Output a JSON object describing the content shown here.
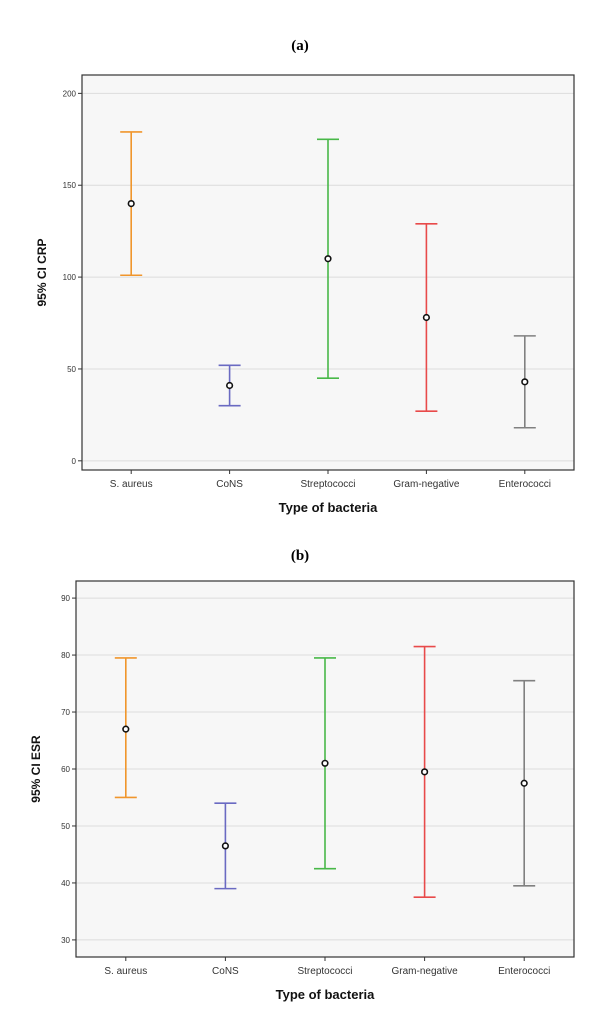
{
  "panels": [
    {
      "label": "(a)"
    },
    {
      "label": "(b)"
    }
  ],
  "chart_data": [
    {
      "type": "errorbar",
      "title": "",
      "xlabel": "Type of bacteria",
      "ylabel": "95% CI CRP",
      "categories": [
        "S. aureus",
        "CoNS",
        "Streptococci",
        "Gram-negative",
        "Enterococci"
      ],
      "mean": [
        140,
        41,
        110,
        78,
        43
      ],
      "lower": [
        101,
        30,
        45,
        27,
        18
      ],
      "upper": [
        179,
        52,
        175,
        129,
        68
      ],
      "colors": [
        "#f0962c",
        "#6a6ac2",
        "#48b848",
        "#e84a4a",
        "#808080"
      ],
      "ylim": [
        -5,
        210
      ],
      "yticks": [
        0,
        50,
        100,
        150,
        200
      ],
      "grid": true
    },
    {
      "type": "errorbar",
      "title": "",
      "xlabel": "Type of bacteria",
      "ylabel": "95% CI ESR",
      "categories": [
        "S. aureus",
        "CoNS",
        "Streptococci",
        "Gram-negative",
        "Enterococci"
      ],
      "mean": [
        67,
        46.5,
        61,
        59.5,
        57.5
      ],
      "lower": [
        55,
        39,
        42.5,
        37.5,
        39.5
      ],
      "upper": [
        79.5,
        54,
        79.5,
        81.5,
        75.5
      ],
      "colors": [
        "#f0962c",
        "#6a6ac2",
        "#48b848",
        "#e84a4a",
        "#808080"
      ],
      "ylim": [
        27,
        93
      ],
      "yticks": [
        30,
        40,
        50,
        60,
        70,
        80,
        90
      ],
      "grid": true
    }
  ]
}
